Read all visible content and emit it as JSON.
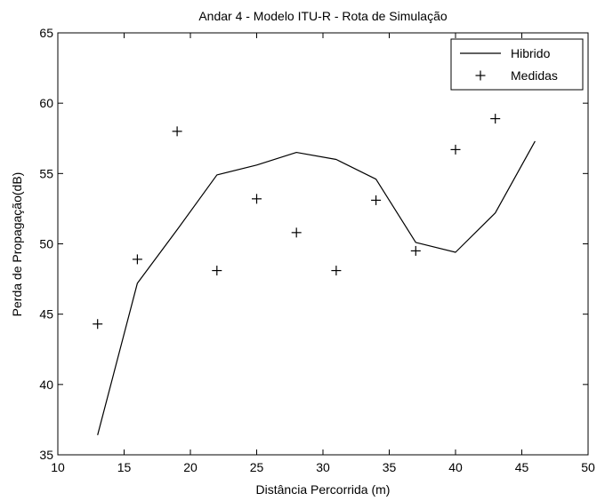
{
  "chart_data": {
    "type": "line",
    "title": "Andar  4 - Modelo ITU-R - Rota de Simulação",
    "xlabel": "Distância Percorrida (m)",
    "ylabel": "Perda de Propagação(dB)",
    "xlim": [
      10,
      50
    ],
    "ylim": [
      35,
      65
    ],
    "xticks": [
      10,
      15,
      20,
      25,
      30,
      35,
      40,
      45,
      50
    ],
    "yticks": [
      35,
      40,
      45,
      50,
      55,
      60,
      65
    ],
    "xtick_labels": [
      "10",
      "15",
      "20",
      "25",
      "30",
      "35",
      "40",
      "45",
      "50"
    ],
    "ytick_labels": [
      "35",
      "40",
      "45",
      "50",
      "55",
      "60",
      "65"
    ],
    "grid": false,
    "legend_position": "top-right",
    "series": [
      {
        "name": "Hibrido",
        "style": "line",
        "color": "#000000",
        "x": [
          13,
          16,
          19,
          22,
          25,
          28,
          31,
          34,
          37,
          40,
          43,
          46
        ],
        "y": [
          36.4,
          47.2,
          51.0,
          54.9,
          55.6,
          56.5,
          56.0,
          54.6,
          50.1,
          49.4,
          52.2,
          57.3
        ]
      },
      {
        "name": "Medidas",
        "style": "marker-plus",
        "color": "#000000",
        "x": [
          13,
          16,
          19,
          22,
          25,
          28,
          31,
          34,
          37,
          40,
          43
        ],
        "y": [
          44.3,
          48.9,
          58.0,
          48.1,
          53.2,
          50.8,
          48.1,
          53.1,
          49.5,
          56.7,
          58.9
        ]
      }
    ]
  }
}
